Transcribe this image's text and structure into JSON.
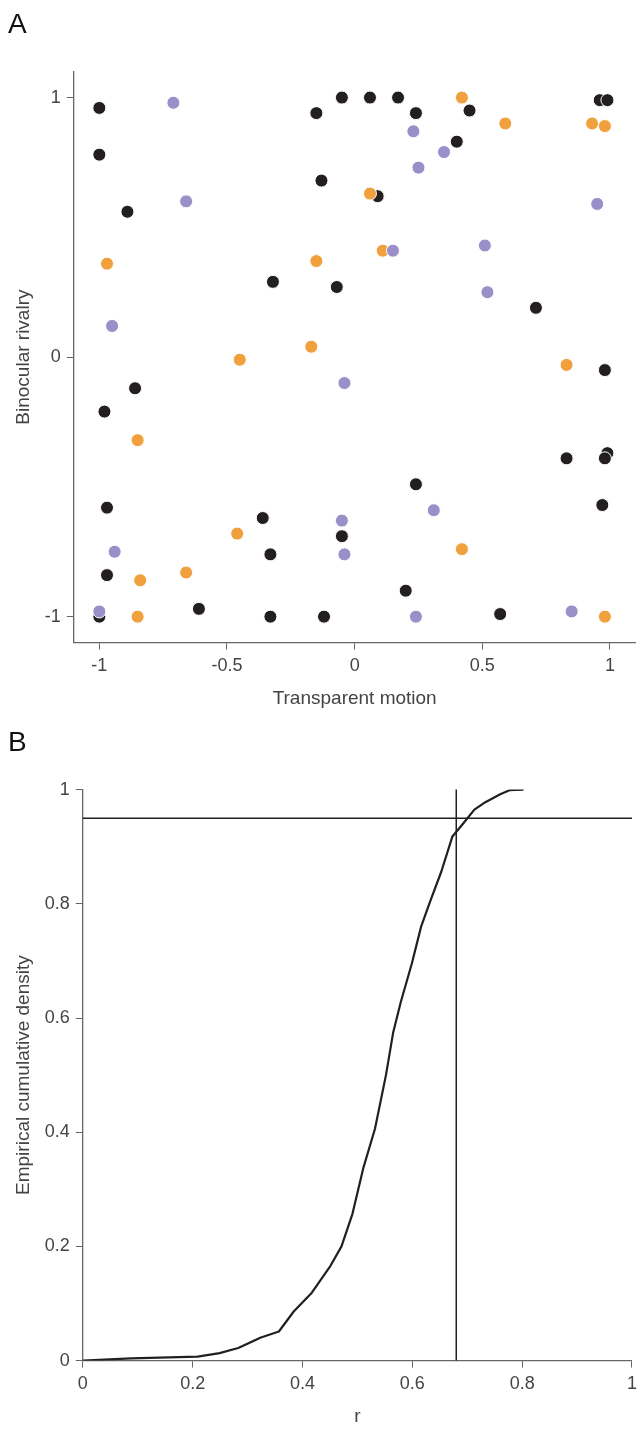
{
  "chart_data": [
    {
      "type": "scatter",
      "title": "A",
      "xlabel": "Transparent motion",
      "ylabel": "Binocular rivalry",
      "xlim": [
        -1.1,
        1.1
      ],
      "ylim": [
        -1.1,
        1.1
      ],
      "xticks": [
        -1,
        -0.5,
        0,
        0.5,
        1
      ],
      "yticks": [
        -1,
        0,
        1
      ],
      "grid": false,
      "legend": false,
      "marker": "circle",
      "series": [
        {
          "color": "#231f20",
          "x": [
            -1,
            -1,
            -0.89,
            -0.15,
            -0.05,
            0.06,
            0.17,
            0.24,
            0.45,
            0.4,
            0.09,
            -0.13,
            0.96,
            0.99,
            -0.32,
            -0.07,
            0.71,
            0.98,
            -0.86,
            -0.98,
            0.83,
            0.99,
            0.98,
            0.24,
            0.97,
            -0.97,
            -0.36,
            -0.33,
            -0.05,
            -0.97,
            0.2,
            -0.61,
            -0.33,
            -0.12,
            0.57,
            -1
          ],
          "values": [
            0.96,
            0.78,
            0.56,
            0.94,
            1,
            1,
            1,
            0.94,
            0.95,
            0.83,
            0.62,
            0.68,
            0.99,
            0.99,
            0.29,
            0.27,
            0.19,
            -0.05,
            -0.12,
            -0.21,
            -0.39,
            -0.37,
            -0.39,
            -0.49,
            -0.57,
            -0.58,
            -0.62,
            -0.76,
            -0.69,
            -0.84,
            -0.9,
            -0.97,
            -1,
            -1,
            -0.99,
            -1
          ]
        },
        {
          "color": "#f0a03c",
          "x": [
            0.42,
            0.59,
            0.93,
            0.98,
            0.06,
            0.11,
            -0.97,
            -0.15,
            -0.45,
            -0.17,
            0.83,
            -0.85,
            -0.46,
            0.42,
            -0.66,
            -0.84,
            -0.85,
            0.98
          ],
          "values": [
            1,
            0.9,
            0.9,
            0.89,
            0.63,
            0.41,
            0.36,
            0.37,
            -0.01,
            0.04,
            -0.03,
            -0.32,
            -0.68,
            -0.74,
            -0.83,
            -0.86,
            -1,
            -1
          ]
        },
        {
          "color": "#9a8fc8",
          "x": [
            -0.71,
            0.23,
            0.35,
            0.25,
            -0.66,
            0.95,
            0.15,
            0.51,
            0.52,
            -0.95,
            -0.04,
            0.31,
            -0.05,
            -0.04,
            -0.94,
            -1,
            0.24,
            0.85
          ],
          "values": [
            0.98,
            0.87,
            0.79,
            0.73,
            0.6,
            0.59,
            0.41,
            0.43,
            0.25,
            0.12,
            -0.1,
            -0.59,
            -0.63,
            -0.76,
            -0.75,
            -0.98,
            -1,
            -0.98
          ]
        }
      ]
    },
    {
      "type": "line",
      "title": "B",
      "xlabel": "r",
      "ylabel": "Empirical cumulative density",
      "xlim": [
        0,
        1
      ],
      "ylim": [
        0,
        1
      ],
      "xticks": [
        0,
        0.2,
        0.4,
        0.6,
        0.8,
        1
      ],
      "yticks": [
        0,
        0.2,
        0.4,
        0.6,
        0.8,
        1
      ],
      "grid": false,
      "legend": false,
      "marker": "none",
      "line_style": "solid",
      "series": [
        {
          "color": "#231f20",
          "x": [
            0,
            0.088,
            0.209,
            0.249,
            0.283,
            0.323,
            0.357,
            0.384,
            0.417,
            0.451,
            0.471,
            0.491,
            0.511,
            0.532,
            0.552,
            0.565,
            0.579,
            0.599,
            0.616,
            0.632,
            0.653,
            0.673,
            0.693,
            0.713,
            0.733,
            0.76,
            0.777,
            0.801
          ],
          "values": [
            0,
            0.004,
            0.007,
            0.013,
            0.022,
            0.04,
            0.051,
            0.086,
            0.119,
            0.166,
            0.2,
            0.257,
            0.338,
            0.406,
            0.5,
            0.574,
            0.628,
            0.695,
            0.76,
            0.803,
            0.857,
            0.918,
            0.941,
            0.965,
            0.978,
            0.992,
            0.999,
            1
          ]
        }
      ],
      "ref_lines": [
        {
          "axis": "x",
          "value": 0.68,
          "color": "#231f20"
        },
        {
          "axis": "y",
          "value": 0.95,
          "color": "#231f20"
        }
      ]
    }
  ]
}
